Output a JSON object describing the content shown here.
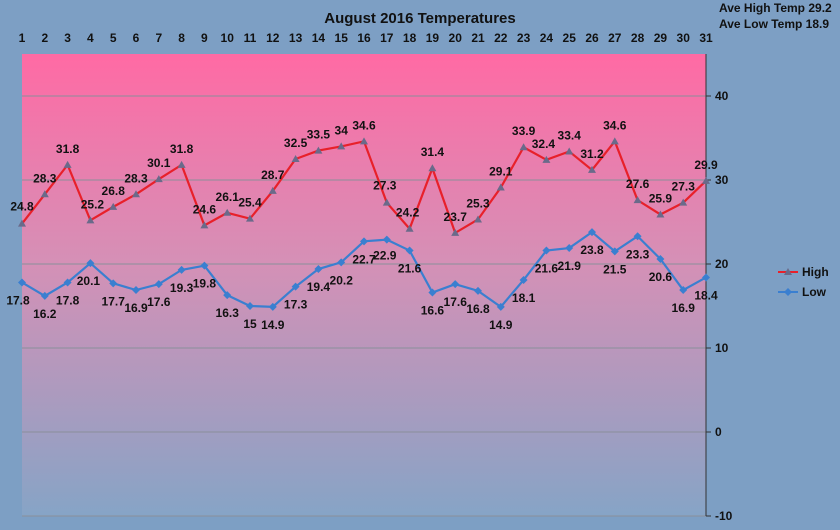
{
  "chart_data": {
    "type": "line",
    "title": "August 2016 Temperatures",
    "annotations": {
      "ave_high": "Ave High Temp 29.2",
      "ave_low": "Ave Low Temp 18.9"
    },
    "categories": [
      "1",
      "2",
      "3",
      "4",
      "5",
      "6",
      "7",
      "8",
      "9",
      "10",
      "11",
      "12",
      "13",
      "14",
      "15",
      "16",
      "17",
      "18",
      "19",
      "20",
      "21",
      "22",
      "23",
      "24",
      "25",
      "26",
      "27",
      "28",
      "29",
      "30",
      "31"
    ],
    "series": [
      {
        "name": "High",
        "color": "#e8202a",
        "marker_color": "#6a6a8a",
        "values": [
          24.8,
          28.3,
          31.8,
          25.2,
          26.8,
          28.3,
          30.1,
          31.8,
          24.6,
          26.1,
          25.4,
          28.7,
          32.5,
          33.5,
          34,
          34.6,
          27.3,
          24.2,
          31.4,
          23.7,
          25.3,
          29.1,
          33.9,
          32.4,
          33.4,
          31.2,
          34.6,
          27.6,
          25.9,
          27.3,
          29.9
        ],
        "labels": [
          "24.8",
          "28.3",
          "31.8",
          "25.2",
          "26.8",
          "28.3",
          "30.1",
          "31.8",
          "24.6",
          "26.1",
          "25.4",
          "28.7",
          "32.5",
          "33.5",
          "34",
          "34.6",
          "27.3",
          "24.2",
          "31.4",
          "23.7",
          "25.3",
          "29.1",
          "33.9",
          "32.4",
          "33.4",
          "31.2",
          "34.6",
          "27.6",
          "25.9",
          "27.3",
          "29.9"
        ]
      },
      {
        "name": "Low",
        "color": "#3a7fd0",
        "marker_color": "#3a7fd0",
        "values": [
          17.8,
          16.2,
          17.8,
          20.1,
          17.7,
          16.9,
          17.6,
          19.3,
          19.8,
          16.3,
          15,
          14.9,
          17.3,
          19.4,
          20.2,
          22.7,
          22.9,
          21.6,
          16.6,
          17.6,
          16.8,
          14.9,
          18.1,
          21.6,
          21.9,
          23.8,
          21.5,
          23.3,
          20.6,
          16.9,
          18.4
        ],
        "labels": [
          "17.8",
          "16.2",
          "17.8",
          "20.1",
          "17.7",
          "16.9",
          "17.6",
          "19.3",
          "19.8",
          "16.3",
          "15",
          "14.9",
          "17.3",
          "19.4",
          "20.2",
          "22.7",
          "22.9",
          "21.6",
          "16.6",
          "17.6",
          "16.8",
          "14.9",
          "18.1",
          "21.6",
          "21.9",
          "23.8",
          "21.5",
          "23.3",
          "20.6",
          "16.9",
          "18.4"
        ]
      }
    ],
    "yticks": [
      "40",
      "30",
      "20",
      "10",
      "0",
      "-10"
    ],
    "ylim": [
      -10,
      45
    ],
    "grid": true,
    "legend": "right",
    "x_axis_position": "top",
    "y_axis_position": "right"
  }
}
